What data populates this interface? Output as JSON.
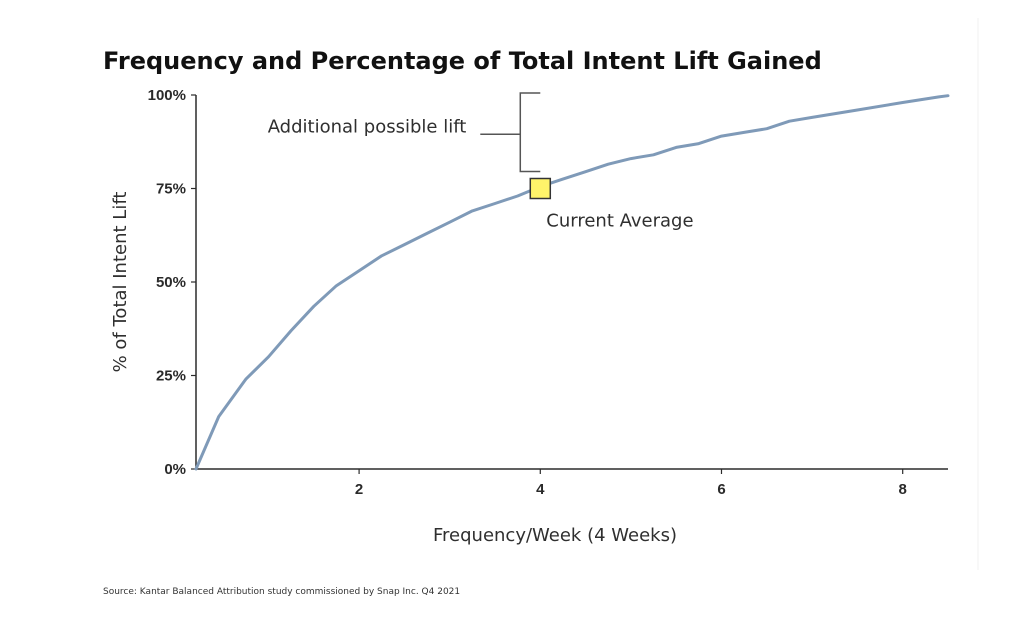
{
  "chart_data": {
    "type": "line",
    "title": "Frequency and Percentage of Total Intent Lift Gained",
    "xlabel": "Frequency/Week (4 Weeks)",
    "ylabel": "% of Total Intent Lift",
    "xlim": [
      0.2,
      8.5
    ],
    "ylim": [
      0,
      100
    ],
    "x_ticks": [
      2,
      4,
      6,
      8
    ],
    "x_tick_labels": [
      "2",
      "4",
      "6",
      "8"
    ],
    "y_ticks": [
      0,
      25,
      50,
      75,
      100
    ],
    "y_tick_labels": [
      "0%",
      "25%",
      "50%",
      "75%",
      "100%"
    ],
    "grid": false,
    "series": [
      {
        "color": "#7f9ab8",
        "points": [
          [
            0.2,
            0
          ],
          [
            0.45,
            14
          ],
          [
            0.75,
            24
          ],
          [
            1.0,
            30
          ],
          [
            1.25,
            37
          ],
          [
            1.5,
            43.5
          ],
          [
            1.75,
            49
          ],
          [
            2.0,
            53
          ],
          [
            2.25,
            57
          ],
          [
            2.5,
            60
          ],
          [
            2.75,
            63
          ],
          [
            3.0,
            66
          ],
          [
            3.25,
            69
          ],
          [
            3.5,
            71
          ],
          [
            3.75,
            73
          ],
          [
            4.0,
            75.5
          ],
          [
            4.25,
            77.5
          ],
          [
            4.5,
            79.5
          ],
          [
            4.75,
            81.5
          ],
          [
            5.0,
            83
          ],
          [
            5.25,
            84
          ],
          [
            5.5,
            86
          ],
          [
            5.75,
            87
          ],
          [
            6.0,
            89
          ],
          [
            6.25,
            90
          ],
          [
            6.5,
            91
          ],
          [
            6.75,
            93
          ],
          [
            7.0,
            94
          ],
          [
            7.5,
            96
          ],
          [
            8.0,
            98
          ],
          [
            8.4,
            99.5
          ],
          [
            8.5,
            99.8
          ]
        ]
      }
    ],
    "annotations": [
      {
        "type": "bracket",
        "text": "Additional possible lift",
        "x": 4.0,
        "y_from": 79,
        "y_to": 100
      },
      {
        "type": "marker",
        "text": "Current Average",
        "x": 4.0,
        "y": 75,
        "color": "#fff46a",
        "border": "#333333"
      }
    ],
    "source": "Source: Kantar Balanced Attribution study commissioned by Snap Inc. Q4 2021"
  }
}
